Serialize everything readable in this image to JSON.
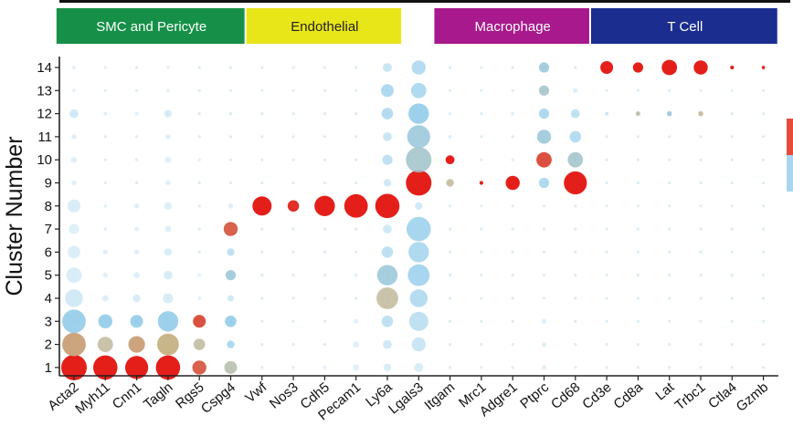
{
  "chart_data": {
    "type": "dot",
    "ylabel": "Cluster Number",
    "xlabel": "",
    "genes": [
      "Acta2",
      "Myh11",
      "Cnn1",
      "Tagln",
      "Rgs5",
      "Cspg4",
      "Vwf",
      "Nos3",
      "Cdh5",
      "Pecam1",
      "Ly6a",
      "Lgals3",
      "Itgam",
      "Mrc1",
      "Adgre1",
      "Ptprc",
      "Cd68",
      "Cd3e",
      "Cd8a",
      "Lat",
      "Trbc1",
      "Ctla4",
      "Gzmb"
    ],
    "clusters": [
      "1",
      "2",
      "3",
      "4",
      "5",
      "6",
      "7",
      "8",
      "9",
      "10",
      "11",
      "12",
      "13",
      "14"
    ],
    "groups": [
      {
        "label": "SMC and Pericyte",
        "genes": [
          "Acta2",
          "Myh11",
          "Cnn1",
          "Tagln",
          "Rgs5",
          "Cspg4"
        ],
        "color": "#169048",
        "text_color": "#ffffff"
      },
      {
        "label": "Endothelial",
        "genes": [
          "Vwf",
          "Nos3",
          "Cdh5",
          "Pecam1",
          "Ly6a"
        ],
        "color": "#e8e619",
        "text_color": "#222222"
      },
      {
        "label": "Macrophage",
        "genes": [
          "Itgam",
          "Mrc1",
          "Adgre1",
          "Ptprc",
          "Cd68"
        ],
        "color": "#a7198c",
        "text_color": "#ffffff"
      },
      {
        "label": "T Cell",
        "genes": [
          "Cd3e",
          "Cd8a",
          "Lat",
          "Trbc1",
          "Ctla4",
          "Gzmb"
        ],
        "color": "#1b2d8f",
        "text_color": "#ffffff"
      }
    ],
    "color_scale": {
      "low": "#f3f9fd",
      "mid_low": "#8cc9e8",
      "mid": "#c9b58a",
      "high": "#e41f1a"
    },
    "points": [
      {
        "gene": "Acta2",
        "cluster": 1,
        "size": 1.0,
        "expr": 1.0
      },
      {
        "gene": "Acta2",
        "cluster": 2,
        "size": 0.92,
        "expr": 0.6
      },
      {
        "gene": "Acta2",
        "cluster": 3,
        "size": 0.92,
        "expr": 0.25
      },
      {
        "gene": "Acta2",
        "cluster": 4,
        "size": 0.7,
        "expr": 0.1
      },
      {
        "gene": "Acta2",
        "cluster": 5,
        "size": 0.6,
        "expr": 0.08
      },
      {
        "gene": "Acta2",
        "cluster": 6,
        "size": 0.5,
        "expr": 0.07
      },
      {
        "gene": "Acta2",
        "cluster": 7,
        "size": 0.4,
        "expr": 0.06
      },
      {
        "gene": "Acta2",
        "cluster": 8,
        "size": 0.5,
        "expr": 0.08
      },
      {
        "gene": "Acta2",
        "cluster": 9,
        "size": 0.2,
        "expr": 0.05
      },
      {
        "gene": "Acta2",
        "cluster": 10,
        "size": 0.25,
        "expr": 0.05
      },
      {
        "gene": "Acta2",
        "cluster": 11,
        "size": 0.2,
        "expr": 0.05
      },
      {
        "gene": "Acta2",
        "cluster": 12,
        "size": 0.35,
        "expr": 0.1
      },
      {
        "gene": "Acta2",
        "cluster": 13,
        "size": 0.15,
        "expr": 0.04
      },
      {
        "gene": "Acta2",
        "cluster": 14,
        "size": 0.15,
        "expr": 0.04
      },
      {
        "gene": "Myh11",
        "cluster": 1,
        "size": 0.95,
        "expr": 1.0
      },
      {
        "gene": "Myh11",
        "cluster": 2,
        "size": 0.6,
        "expr": 0.5
      },
      {
        "gene": "Myh11",
        "cluster": 3,
        "size": 0.55,
        "expr": 0.25
      },
      {
        "gene": "Myh11",
        "cluster": 4,
        "size": 0.25,
        "expr": 0.06
      },
      {
        "gene": "Myh11",
        "cluster": 5,
        "size": 0.2,
        "expr": 0.05
      },
      {
        "gene": "Myh11",
        "cluster": 6,
        "size": 0.2,
        "expr": 0.05
      },
      {
        "gene": "Myh11",
        "cluster": 7,
        "size": 0.15,
        "expr": 0.04
      },
      {
        "gene": "Myh11",
        "cluster": 8,
        "size": 0.15,
        "expr": 0.04
      },
      {
        "gene": "Myh11",
        "cluster": 12,
        "size": 0.15,
        "expr": 0.04
      },
      {
        "gene": "Myh11",
        "cluster": 14,
        "size": 0.12,
        "expr": 0.03
      },
      {
        "gene": "Cnn1",
        "cluster": 1,
        "size": 0.9,
        "expr": 1.0
      },
      {
        "gene": "Cnn1",
        "cluster": 2,
        "size": 0.65,
        "expr": 0.6
      },
      {
        "gene": "Cnn1",
        "cluster": 3,
        "size": 0.5,
        "expr": 0.25
      },
      {
        "gene": "Cnn1",
        "cluster": 4,
        "size": 0.3,
        "expr": 0.08
      },
      {
        "gene": "Cnn1",
        "cluster": 5,
        "size": 0.25,
        "expr": 0.06
      },
      {
        "gene": "Cnn1",
        "cluster": 6,
        "size": 0.2,
        "expr": 0.05
      },
      {
        "gene": "Cnn1",
        "cluster": 7,
        "size": 0.18,
        "expr": 0.05
      },
      {
        "gene": "Cnn1",
        "cluster": 8,
        "size": 0.2,
        "expr": 0.05
      },
      {
        "gene": "Cnn1",
        "cluster": 12,
        "size": 0.15,
        "expr": 0.04
      },
      {
        "gene": "Tagln",
        "cluster": 1,
        "size": 0.95,
        "expr": 1.0
      },
      {
        "gene": "Tagln",
        "cluster": 2,
        "size": 0.85,
        "expr": 0.55
      },
      {
        "gene": "Tagln",
        "cluster": 3,
        "size": 0.8,
        "expr": 0.25
      },
      {
        "gene": "Tagln",
        "cluster": 4,
        "size": 0.4,
        "expr": 0.08
      },
      {
        "gene": "Tagln",
        "cluster": 5,
        "size": 0.35,
        "expr": 0.08
      },
      {
        "gene": "Tagln",
        "cluster": 6,
        "size": 0.3,
        "expr": 0.07
      },
      {
        "gene": "Tagln",
        "cluster": 7,
        "size": 0.25,
        "expr": 0.06
      },
      {
        "gene": "Tagln",
        "cluster": 8,
        "size": 0.3,
        "expr": 0.07
      },
      {
        "gene": "Tagln",
        "cluster": 9,
        "size": 0.2,
        "expr": 0.05
      },
      {
        "gene": "Tagln",
        "cluster": 10,
        "size": 0.25,
        "expr": 0.05
      },
      {
        "gene": "Tagln",
        "cluster": 11,
        "size": 0.2,
        "expr": 0.05
      },
      {
        "gene": "Tagln",
        "cluster": 12,
        "size": 0.3,
        "expr": 0.08
      },
      {
        "gene": "Rgs5",
        "cluster": 1,
        "size": 0.55,
        "expr": 0.8
      },
      {
        "gene": "Rgs5",
        "cluster": 2,
        "size": 0.45,
        "expr": 0.5
      },
      {
        "gene": "Rgs5",
        "cluster": 3,
        "size": 0.5,
        "expr": 0.85
      },
      {
        "gene": "Rgs5",
        "cluster": 4,
        "size": 0.15,
        "expr": 0.04
      },
      {
        "gene": "Rgs5",
        "cluster": 5,
        "size": 0.15,
        "expr": 0.04
      },
      {
        "gene": "Cspg4",
        "cluster": 1,
        "size": 0.5,
        "expr": 0.45
      },
      {
        "gene": "Cspg4",
        "cluster": 2,
        "size": 0.3,
        "expr": 0.2
      },
      {
        "gene": "Cspg4",
        "cluster": 3,
        "size": 0.45,
        "expr": 0.25
      },
      {
        "gene": "Cspg4",
        "cluster": 4,
        "size": 0.25,
        "expr": 0.1
      },
      {
        "gene": "Cspg4",
        "cluster": 5,
        "size": 0.4,
        "expr": 0.3
      },
      {
        "gene": "Cspg4",
        "cluster": 6,
        "size": 0.3,
        "expr": 0.15
      },
      {
        "gene": "Cspg4",
        "cluster": 7,
        "size": 0.55,
        "expr": 0.8
      },
      {
        "gene": "Cspg4",
        "cluster": 8,
        "size": 0.2,
        "expr": 0.06
      },
      {
        "gene": "Vwf",
        "cluster": 8,
        "size": 0.75,
        "expr": 1.0
      },
      {
        "gene": "Nos3",
        "cluster": 8,
        "size": 0.45,
        "expr": 0.95
      },
      {
        "gene": "Cdh5",
        "cluster": 8,
        "size": 0.8,
        "expr": 1.0
      },
      {
        "gene": "Cdh5",
        "cluster": 1,
        "size": 0.15,
        "expr": 0.04
      },
      {
        "gene": "Pecam1",
        "cluster": 8,
        "size": 0.92,
        "expr": 1.0
      },
      {
        "gene": "Pecam1",
        "cluster": 1,
        "size": 0.25,
        "expr": 0.06
      },
      {
        "gene": "Pecam1",
        "cluster": 2,
        "size": 0.25,
        "expr": 0.06
      },
      {
        "gene": "Pecam1",
        "cluster": 3,
        "size": 0.18,
        "expr": 0.04
      },
      {
        "gene": "Pecam1",
        "cluster": 5,
        "size": 0.15,
        "expr": 0.04
      },
      {
        "gene": "Ly6a",
        "cluster": 1,
        "size": 0.3,
        "expr": 0.08
      },
      {
        "gene": "Ly6a",
        "cluster": 2,
        "size": 0.35,
        "expr": 0.1
      },
      {
        "gene": "Ly6a",
        "cluster": 3,
        "size": 0.45,
        "expr": 0.15
      },
      {
        "gene": "Ly6a",
        "cluster": 4,
        "size": 0.85,
        "expr": 0.5
      },
      {
        "gene": "Ly6a",
        "cluster": 5,
        "size": 0.8,
        "expr": 0.3
      },
      {
        "gene": "Ly6a",
        "cluster": 6,
        "size": 0.45,
        "expr": 0.15
      },
      {
        "gene": "Ly6a",
        "cluster": 7,
        "size": 0.35,
        "expr": 0.1
      },
      {
        "gene": "Ly6a",
        "cluster": 8,
        "size": 0.95,
        "expr": 1.0
      },
      {
        "gene": "Ly6a",
        "cluster": 9,
        "size": 0.3,
        "expr": 0.1
      },
      {
        "gene": "Ly6a",
        "cluster": 10,
        "size": 0.4,
        "expr": 0.15
      },
      {
        "gene": "Ly6a",
        "cluster": 11,
        "size": 0.35,
        "expr": 0.12
      },
      {
        "gene": "Ly6a",
        "cluster": 12,
        "size": 0.45,
        "expr": 0.18
      },
      {
        "gene": "Ly6a",
        "cluster": 13,
        "size": 0.5,
        "expr": 0.2
      },
      {
        "gene": "Ly6a",
        "cluster": 14,
        "size": 0.35,
        "expr": 0.12
      },
      {
        "gene": "Lgals3",
        "cluster": 1,
        "size": 0.35,
        "expr": 0.08
      },
      {
        "gene": "Lgals3",
        "cluster": 2,
        "size": 0.55,
        "expr": 0.12
      },
      {
        "gene": "Lgals3",
        "cluster": 3,
        "size": 0.75,
        "expr": 0.15
      },
      {
        "gene": "Lgals3",
        "cluster": 4,
        "size": 0.7,
        "expr": 0.18
      },
      {
        "gene": "Lgals3",
        "cluster": 5,
        "size": 0.85,
        "expr": 0.22
      },
      {
        "gene": "Lgals3",
        "cluster": 6,
        "size": 0.8,
        "expr": 0.2
      },
      {
        "gene": "Lgals3",
        "cluster": 7,
        "size": 0.95,
        "expr": 0.22
      },
      {
        "gene": "Lgals3",
        "cluster": 8,
        "size": 0.3,
        "expr": 0.1
      },
      {
        "gene": "Lgals3",
        "cluster": 9,
        "size": 1.0,
        "expr": 1.0
      },
      {
        "gene": "Lgals3",
        "cluster": 10,
        "size": 1.0,
        "expr": 0.35
      },
      {
        "gene": "Lgals3",
        "cluster": 11,
        "size": 0.9,
        "expr": 0.3
      },
      {
        "gene": "Lgals3",
        "cluster": 12,
        "size": 0.8,
        "expr": 0.25
      },
      {
        "gene": "Lgals3",
        "cluster": 13,
        "size": 0.6,
        "expr": 0.2
      },
      {
        "gene": "Lgals3",
        "cluster": 14,
        "size": 0.55,
        "expr": 0.18
      },
      {
        "gene": "Itgam",
        "cluster": 9,
        "size": 0.3,
        "expr": 0.5
      },
      {
        "gene": "Itgam",
        "cluster": 10,
        "size": 0.35,
        "expr": 1.0
      },
      {
        "gene": "Itgam",
        "cluster": 11,
        "size": 0.15,
        "expr": 0.05
      },
      {
        "gene": "Itgam",
        "cluster": 12,
        "size": 0.12,
        "expr": 0.04
      },
      {
        "gene": "Mrc1",
        "cluster": 9,
        "size": 0.15,
        "expr": 1.0
      },
      {
        "gene": "Adgre1",
        "cluster": 9,
        "size": 0.55,
        "expr": 1.0
      },
      {
        "gene": "Adgre1",
        "cluster": 12,
        "size": 0.15,
        "expr": 0.04
      },
      {
        "gene": "Ptprc",
        "cluster": 1,
        "size": 0.2,
        "expr": 0.05
      },
      {
        "gene": "Ptprc",
        "cluster": 2,
        "size": 0.2,
        "expr": 0.05
      },
      {
        "gene": "Ptprc",
        "cluster": 3,
        "size": 0.2,
        "expr": 0.05
      },
      {
        "gene": "Ptprc",
        "cluster": 9,
        "size": 0.4,
        "expr": 0.2
      },
      {
        "gene": "Ptprc",
        "cluster": 10,
        "size": 0.6,
        "expr": 0.85
      },
      {
        "gene": "Ptprc",
        "cluster": 11,
        "size": 0.55,
        "expr": 0.3
      },
      {
        "gene": "Ptprc",
        "cluster": 12,
        "size": 0.4,
        "expr": 0.2
      },
      {
        "gene": "Ptprc",
        "cluster": 13,
        "size": 0.4,
        "expr": 0.35
      },
      {
        "gene": "Ptprc",
        "cluster": 14,
        "size": 0.4,
        "expr": 0.3
      },
      {
        "gene": "Cd68",
        "cluster": 9,
        "size": 0.9,
        "expr": 1.0
      },
      {
        "gene": "Cd68",
        "cluster": 10,
        "size": 0.6,
        "expr": 0.35
      },
      {
        "gene": "Cd68",
        "cluster": 11,
        "size": 0.45,
        "expr": 0.18
      },
      {
        "gene": "Cd68",
        "cluster": 12,
        "size": 0.35,
        "expr": 0.15
      },
      {
        "gene": "Cd68",
        "cluster": 13,
        "size": 0.2,
        "expr": 0.06
      },
      {
        "gene": "Cd3e",
        "cluster": 14,
        "size": 0.5,
        "expr": 1.0
      },
      {
        "gene": "Cd3e",
        "cluster": 12,
        "size": 0.15,
        "expr": 0.1
      },
      {
        "gene": "Cd8a",
        "cluster": 14,
        "size": 0.4,
        "expr": 1.0
      },
      {
        "gene": "Cd8a",
        "cluster": 12,
        "size": 0.18,
        "expr": 0.45
      },
      {
        "gene": "Lat",
        "cluster": 14,
        "size": 0.6,
        "expr": 1.0
      },
      {
        "gene": "Lat",
        "cluster": 12,
        "size": 0.2,
        "expr": 0.3
      },
      {
        "gene": "Trbc1",
        "cluster": 14,
        "size": 0.55,
        "expr": 1.0
      },
      {
        "gene": "Trbc1",
        "cluster": 12,
        "size": 0.2,
        "expr": 0.5
      },
      {
        "gene": "Ctla4",
        "cluster": 14,
        "size": 0.15,
        "expr": 1.0
      },
      {
        "gene": "Gzmb",
        "cluster": 14,
        "size": 0.13,
        "expr": 1.0
      }
    ]
  }
}
